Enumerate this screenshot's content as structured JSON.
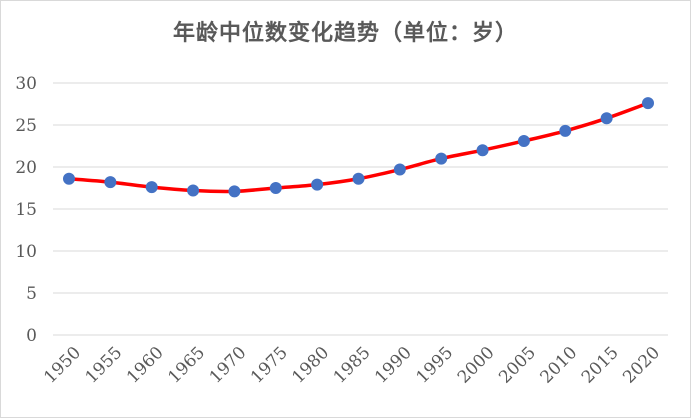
{
  "chart_data": {
    "type": "line",
    "title": "年龄中位数变化趋势（单位：岁）",
    "x": [
      "1950",
      "1955",
      "1960",
      "1965",
      "1970",
      "1975",
      "1980",
      "1985",
      "1990",
      "1995",
      "2000",
      "2005",
      "2010",
      "2015",
      "2020"
    ],
    "series": [
      {
        "values": [
          18.6,
          18.2,
          17.6,
          17.2,
          17.1,
          17.5,
          17.9,
          18.6,
          19.7,
          21.0,
          22.0,
          23.1,
          24.3,
          25.8,
          27.6
        ]
      }
    ],
    "ylim": [
      0,
      30
    ],
    "yticks": [
      0,
      5,
      10,
      15,
      20,
      25,
      30
    ],
    "grid": true,
    "legend": "none",
    "colors": {
      "line": "#ff0000",
      "marker": "#4472c4",
      "grid": "#d9d9d9",
      "text": "#595959"
    }
  }
}
